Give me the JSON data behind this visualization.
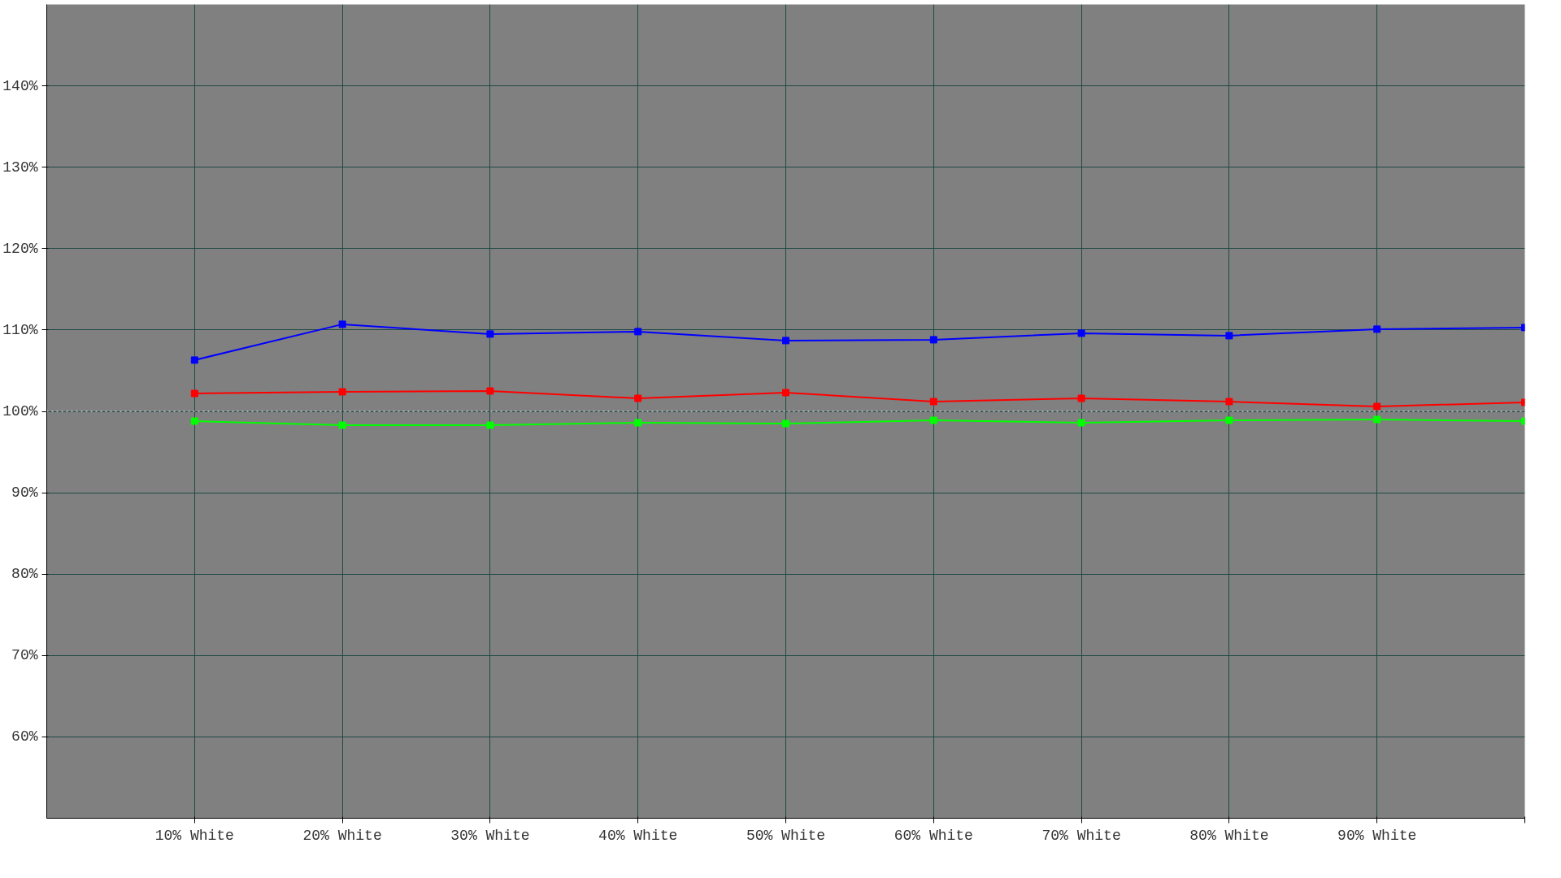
{
  "chart_data": {
    "type": "line",
    "categories": [
      "10% White",
      "20% White",
      "30% White",
      "40% White",
      "50% White",
      "60% White",
      "70% White",
      "80% White",
      "90% White",
      null
    ],
    "series": [
      {
        "color": "#0000ff",
        "values": [
          106.3,
          110.7,
          109.5,
          109.8,
          108.7,
          108.8,
          109.6,
          109.3,
          110.1,
          110.3
        ]
      },
      {
        "color": "#ff0000",
        "values": [
          102.2,
          102.4,
          102.5,
          101.6,
          102.3,
          101.2,
          101.6,
          101.2,
          100.6,
          101.1
        ]
      },
      {
        "color": "#00ff00",
        "values": [
          98.8,
          98.3,
          98.3,
          98.6,
          98.5,
          98.9,
          98.6,
          98.9,
          99.0,
          98.8
        ]
      }
    ],
    "ylim": [
      50,
      150
    ],
    "yticks": [
      {
        "value": 60,
        "label": "60%"
      },
      {
        "value": 70,
        "label": "70%"
      },
      {
        "value": 80,
        "label": "80%"
      },
      {
        "value": 90,
        "label": "90%"
      },
      {
        "value": 100,
        "label": "100%"
      },
      {
        "value": 110,
        "label": "110%"
      },
      {
        "value": 120,
        "label": "120%"
      },
      {
        "value": 130,
        "label": "130%"
      },
      {
        "value": 140,
        "label": "140%"
      }
    ],
    "grid": true,
    "marker": "square",
    "line_style": "solid",
    "ref_lines": [
      {
        "axis": "y",
        "value": 100,
        "color": "#ffffff",
        "line_style": "dotted"
      }
    ]
  }
}
